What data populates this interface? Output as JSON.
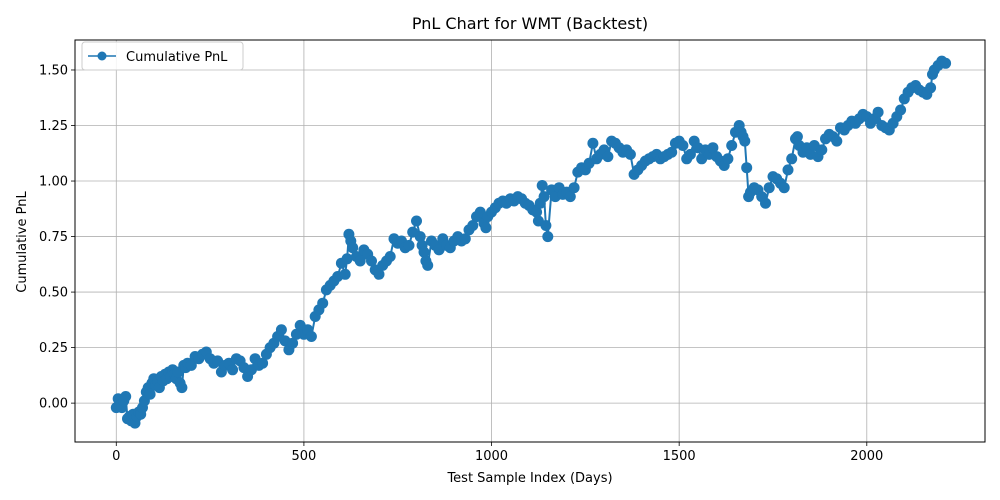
{
  "chart_data": {
    "type": "line",
    "title": "PnL Chart for WMT (Backtest)",
    "xlabel": "Test Sample Index (Days)",
    "ylabel": "Cumulative PnL",
    "xlim": [
      -110,
      2315
    ],
    "ylim": [
      -0.175,
      1.635
    ],
    "xticks": [
      0,
      500,
      1000,
      1500,
      2000
    ],
    "yticks": [
      0.0,
      0.25,
      0.5,
      0.75,
      1.0,
      1.25,
      1.5
    ],
    "ytick_labels": [
      "0.00",
      "0.25",
      "0.50",
      "0.75",
      "1.00",
      "1.25",
      "1.50"
    ],
    "grid": true,
    "legend_position": "upper-left",
    "series": [
      {
        "name": "Cumulative PnL",
        "color": "#1f77b4",
        "marker": "circle",
        "x": [
          0,
          5,
          10,
          15,
          20,
          25,
          30,
          35,
          40,
          45,
          50,
          55,
          60,
          65,
          70,
          75,
          80,
          85,
          90,
          95,
          100,
          105,
          110,
          115,
          120,
          125,
          130,
          135,
          140,
          145,
          150,
          155,
          160,
          165,
          170,
          175,
          180,
          185,
          190,
          200,
          210,
          220,
          230,
          240,
          250,
          260,
          270,
          280,
          290,
          300,
          310,
          320,
          330,
          340,
          350,
          360,
          370,
          380,
          390,
          400,
          410,
          420,
          430,
          440,
          450,
          460,
          470,
          480,
          490,
          500,
          510,
          520,
          530,
          540,
          550,
          560,
          570,
          580,
          590,
          600,
          610,
          615,
          620,
          625,
          630,
          640,
          650,
          660,
          670,
          680,
          690,
          700,
          710,
          720,
          730,
          740,
          750,
          760,
          770,
          780,
          790,
          800,
          810,
          815,
          820,
          825,
          830,
          840,
          850,
          860,
          870,
          880,
          890,
          900,
          910,
          920,
          930,
          940,
          950,
          960,
          970,
          980,
          985,
          990,
          1000,
          1010,
          1020,
          1030,
          1040,
          1050,
          1060,
          1070,
          1080,
          1090,
          1100,
          1110,
          1120,
          1125,
          1130,
          1135,
          1140,
          1145,
          1150,
          1160,
          1170,
          1180,
          1190,
          1200,
          1210,
          1220,
          1230,
          1240,
          1250,
          1260,
          1270,
          1280,
          1290,
          1300,
          1310,
          1320,
          1330,
          1340,
          1350,
          1360,
          1370,
          1380,
          1390,
          1400,
          1410,
          1420,
          1430,
          1440,
          1450,
          1460,
          1470,
          1480,
          1490,
          1500,
          1510,
          1520,
          1530,
          1540,
          1550,
          1560,
          1570,
          1580,
          1590,
          1600,
          1610,
          1620,
          1630,
          1640,
          1650,
          1660,
          1665,
          1670,
          1675,
          1680,
          1685,
          1690,
          1700,
          1710,
          1720,
          1730,
          1740,
          1750,
          1760,
          1770,
          1780,
          1790,
          1800,
          1810,
          1815,
          1820,
          1830,
          1840,
          1850,
          1860,
          1870,
          1880,
          1890,
          1900,
          1910,
          1920,
          1930,
          1940,
          1950,
          1960,
          1970,
          1980,
          1990,
          2000,
          2010,
          2020,
          2030,
          2040,
          2050,
          2060,
          2070,
          2080,
          2090,
          2100,
          2110,
          2120,
          2130,
          2140,
          2150,
          2160,
          2170,
          2175,
          2180,
          2190,
          2200,
          2210
        ],
        "y": [
          -0.02,
          0.02,
          -0.01,
          -0.02,
          0.01,
          0.03,
          -0.07,
          -0.06,
          -0.08,
          -0.05,
          -0.09,
          -0.06,
          -0.04,
          -0.05,
          -0.02,
          0.01,
          0.05,
          0.07,
          0.04,
          0.09,
          0.11,
          0.08,
          0.1,
          0.07,
          0.12,
          0.1,
          0.13,
          0.11,
          0.14,
          0.12,
          0.15,
          0.13,
          0.11,
          0.14,
          0.09,
          0.07,
          0.17,
          0.16,
          0.18,
          0.17,
          0.21,
          0.2,
          0.22,
          0.23,
          0.2,
          0.18,
          0.19,
          0.14,
          0.17,
          0.18,
          0.15,
          0.2,
          0.19,
          0.16,
          0.12,
          0.15,
          0.2,
          0.17,
          0.18,
          0.22,
          0.25,
          0.27,
          0.3,
          0.33,
          0.28,
          0.24,
          0.27,
          0.31,
          0.35,
          0.31,
          0.33,
          0.3,
          0.39,
          0.42,
          0.45,
          0.51,
          0.53,
          0.55,
          0.57,
          0.63,
          0.58,
          0.65,
          0.76,
          0.73,
          0.7,
          0.66,
          0.64,
          0.69,
          0.67,
          0.64,
          0.6,
          0.58,
          0.62,
          0.64,
          0.66,
          0.74,
          0.72,
          0.73,
          0.7,
          0.71,
          0.77,
          0.82,
          0.75,
          0.71,
          0.68,
          0.64,
          0.62,
          0.73,
          0.71,
          0.69,
          0.74,
          0.71,
          0.7,
          0.73,
          0.75,
          0.73,
          0.74,
          0.78,
          0.8,
          0.84,
          0.86,
          0.81,
          0.79,
          0.84,
          0.86,
          0.88,
          0.9,
          0.91,
          0.9,
          0.92,
          0.91,
          0.93,
          0.92,
          0.9,
          0.89,
          0.87,
          0.86,
          0.82,
          0.9,
          0.98,
          0.93,
          0.8,
          0.75,
          0.96,
          0.93,
          0.97,
          0.94,
          0.95,
          0.93,
          0.97,
          1.04,
          1.06,
          1.05,
          1.08,
          1.17,
          1.1,
          1.12,
          1.14,
          1.11,
          1.18,
          1.17,
          1.15,
          1.13,
          1.14,
          1.12,
          1.03,
          1.05,
          1.07,
          1.09,
          1.1,
          1.11,
          1.12,
          1.1,
          1.11,
          1.12,
          1.13,
          1.17,
          1.18,
          1.16,
          1.1,
          1.12,
          1.18,
          1.15,
          1.1,
          1.14,
          1.12,
          1.15,
          1.11,
          1.09,
          1.07,
          1.1,
          1.16,
          1.22,
          1.25,
          1.22,
          1.2,
          1.18,
          1.06,
          0.93,
          0.95,
          0.97,
          0.96,
          0.93,
          0.9,
          0.97,
          1.02,
          1.01,
          0.99,
          0.97,
          1.05,
          1.1,
          1.19,
          1.2,
          1.16,
          1.13,
          1.15,
          1.12,
          1.16,
          1.11,
          1.14,
          1.19,
          1.21,
          1.2,
          1.18,
          1.24,
          1.23,
          1.25,
          1.27,
          1.26,
          1.28,
          1.3,
          1.29,
          1.26,
          1.28,
          1.31,
          1.25,
          1.24,
          1.23,
          1.26,
          1.29,
          1.32,
          1.37,
          1.4,
          1.42,
          1.43,
          1.41,
          1.4,
          1.39,
          1.42,
          1.48,
          1.5,
          1.52,
          1.54,
          1.53
        ]
      }
    ]
  }
}
